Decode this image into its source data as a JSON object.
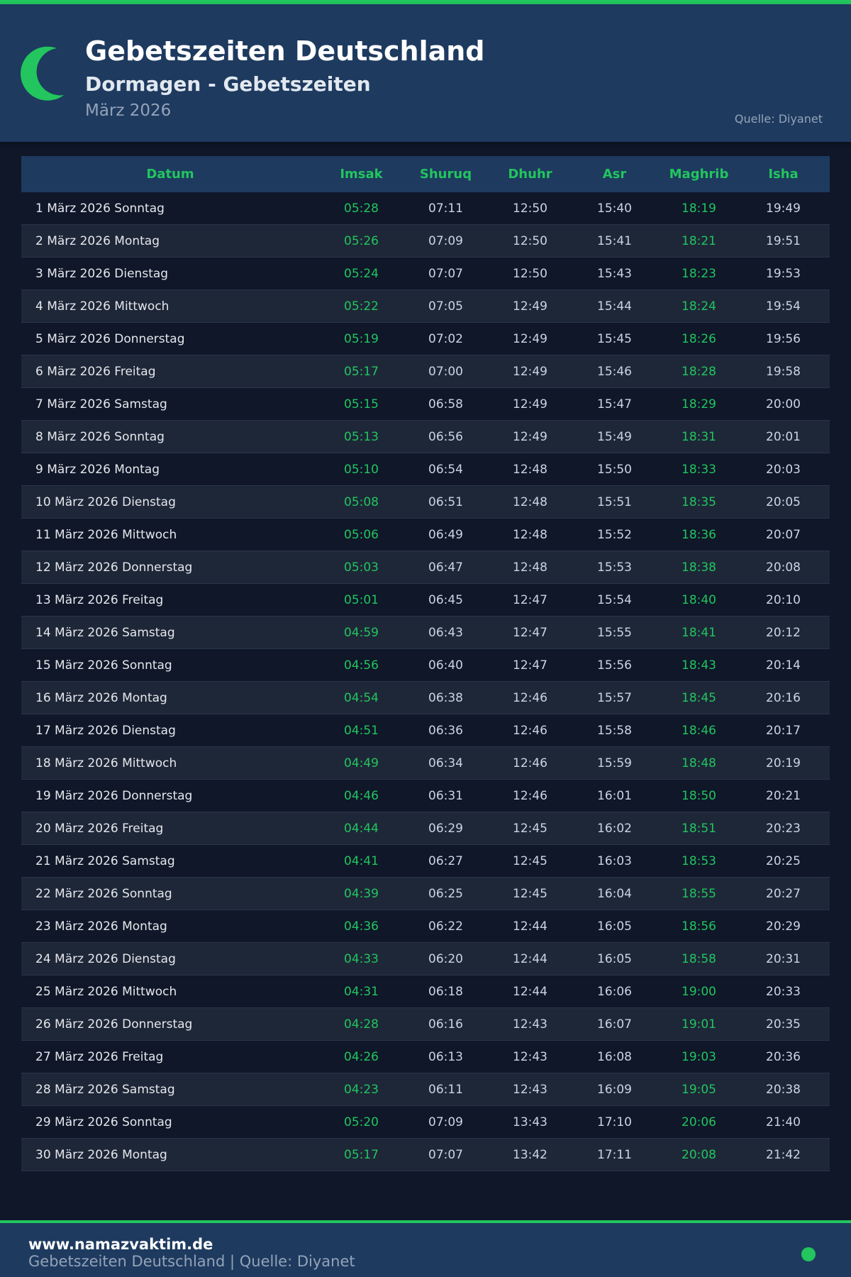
{
  "header": {
    "title": "Gebetszeiten Deutschland",
    "subtitle": "Dormagen - Gebetszeiten",
    "month": "März 2026",
    "source": "Quelle: Diyanet"
  },
  "colors": {
    "accent": "#22c55e",
    "header_bg": "#1e3a5f",
    "page_bg": "#0f1729"
  },
  "table": {
    "columns": [
      "Datum",
      "Imsak",
      "Shuruq",
      "Dhuhr",
      "Asr",
      "Maghrib",
      "Isha"
    ],
    "rows": [
      [
        "1 März 2026 Sonntag",
        "05:28",
        "07:11",
        "12:50",
        "15:40",
        "18:19",
        "19:49"
      ],
      [
        "2 März 2026 Montag",
        "05:26",
        "07:09",
        "12:50",
        "15:41",
        "18:21",
        "19:51"
      ],
      [
        "3 März 2026 Dienstag",
        "05:24",
        "07:07",
        "12:50",
        "15:43",
        "18:23",
        "19:53"
      ],
      [
        "4 März 2026 Mittwoch",
        "05:22",
        "07:05",
        "12:49",
        "15:44",
        "18:24",
        "19:54"
      ],
      [
        "5 März 2026 Donnerstag",
        "05:19",
        "07:02",
        "12:49",
        "15:45",
        "18:26",
        "19:56"
      ],
      [
        "6 März 2026 Freitag",
        "05:17",
        "07:00",
        "12:49",
        "15:46",
        "18:28",
        "19:58"
      ],
      [
        "7 März 2026 Samstag",
        "05:15",
        "06:58",
        "12:49",
        "15:47",
        "18:29",
        "20:00"
      ],
      [
        "8 März 2026 Sonntag",
        "05:13",
        "06:56",
        "12:49",
        "15:49",
        "18:31",
        "20:01"
      ],
      [
        "9 März 2026 Montag",
        "05:10",
        "06:54",
        "12:48",
        "15:50",
        "18:33",
        "20:03"
      ],
      [
        "10 März 2026 Dienstag",
        "05:08",
        "06:51",
        "12:48",
        "15:51",
        "18:35",
        "20:05"
      ],
      [
        "11 März 2026 Mittwoch",
        "05:06",
        "06:49",
        "12:48",
        "15:52",
        "18:36",
        "20:07"
      ],
      [
        "12 März 2026 Donnerstag",
        "05:03",
        "06:47",
        "12:48",
        "15:53",
        "18:38",
        "20:08"
      ],
      [
        "13 März 2026 Freitag",
        "05:01",
        "06:45",
        "12:47",
        "15:54",
        "18:40",
        "20:10"
      ],
      [
        "14 März 2026 Samstag",
        "04:59",
        "06:43",
        "12:47",
        "15:55",
        "18:41",
        "20:12"
      ],
      [
        "15 März 2026 Sonntag",
        "04:56",
        "06:40",
        "12:47",
        "15:56",
        "18:43",
        "20:14"
      ],
      [
        "16 März 2026 Montag",
        "04:54",
        "06:38",
        "12:46",
        "15:57",
        "18:45",
        "20:16"
      ],
      [
        "17 März 2026 Dienstag",
        "04:51",
        "06:36",
        "12:46",
        "15:58",
        "18:46",
        "20:17"
      ],
      [
        "18 März 2026 Mittwoch",
        "04:49",
        "06:34",
        "12:46",
        "15:59",
        "18:48",
        "20:19"
      ],
      [
        "19 März 2026 Donnerstag",
        "04:46",
        "06:31",
        "12:46",
        "16:01",
        "18:50",
        "20:21"
      ],
      [
        "20 März 2026 Freitag",
        "04:44",
        "06:29",
        "12:45",
        "16:02",
        "18:51",
        "20:23"
      ],
      [
        "21 März 2026 Samstag",
        "04:41",
        "06:27",
        "12:45",
        "16:03",
        "18:53",
        "20:25"
      ],
      [
        "22 März 2026 Sonntag",
        "04:39",
        "06:25",
        "12:45",
        "16:04",
        "18:55",
        "20:27"
      ],
      [
        "23 März 2026 Montag",
        "04:36",
        "06:22",
        "12:44",
        "16:05",
        "18:56",
        "20:29"
      ],
      [
        "24 März 2026 Dienstag",
        "04:33",
        "06:20",
        "12:44",
        "16:05",
        "18:58",
        "20:31"
      ],
      [
        "25 März 2026 Mittwoch",
        "04:31",
        "06:18",
        "12:44",
        "16:06",
        "19:00",
        "20:33"
      ],
      [
        "26 März 2026 Donnerstag",
        "04:28",
        "06:16",
        "12:43",
        "16:07",
        "19:01",
        "20:35"
      ],
      [
        "27 März 2026 Freitag",
        "04:26",
        "06:13",
        "12:43",
        "16:08",
        "19:03",
        "20:36"
      ],
      [
        "28 März 2026 Samstag",
        "04:23",
        "06:11",
        "12:43",
        "16:09",
        "19:05",
        "20:38"
      ],
      [
        "29 März 2026 Sonntag",
        "05:20",
        "07:09",
        "13:43",
        "17:10",
        "20:06",
        "21:40"
      ],
      [
        "30 März 2026 Montag",
        "05:17",
        "07:07",
        "13:42",
        "17:11",
        "20:08",
        "21:42"
      ]
    ]
  },
  "footer": {
    "site": "www.namazvaktim.de",
    "subtitle": "Gebetszeiten Deutschland | Quelle: Diyanet"
  },
  "icons": {
    "logo": "crescent-moon-icon",
    "status": "green-dot-icon"
  }
}
